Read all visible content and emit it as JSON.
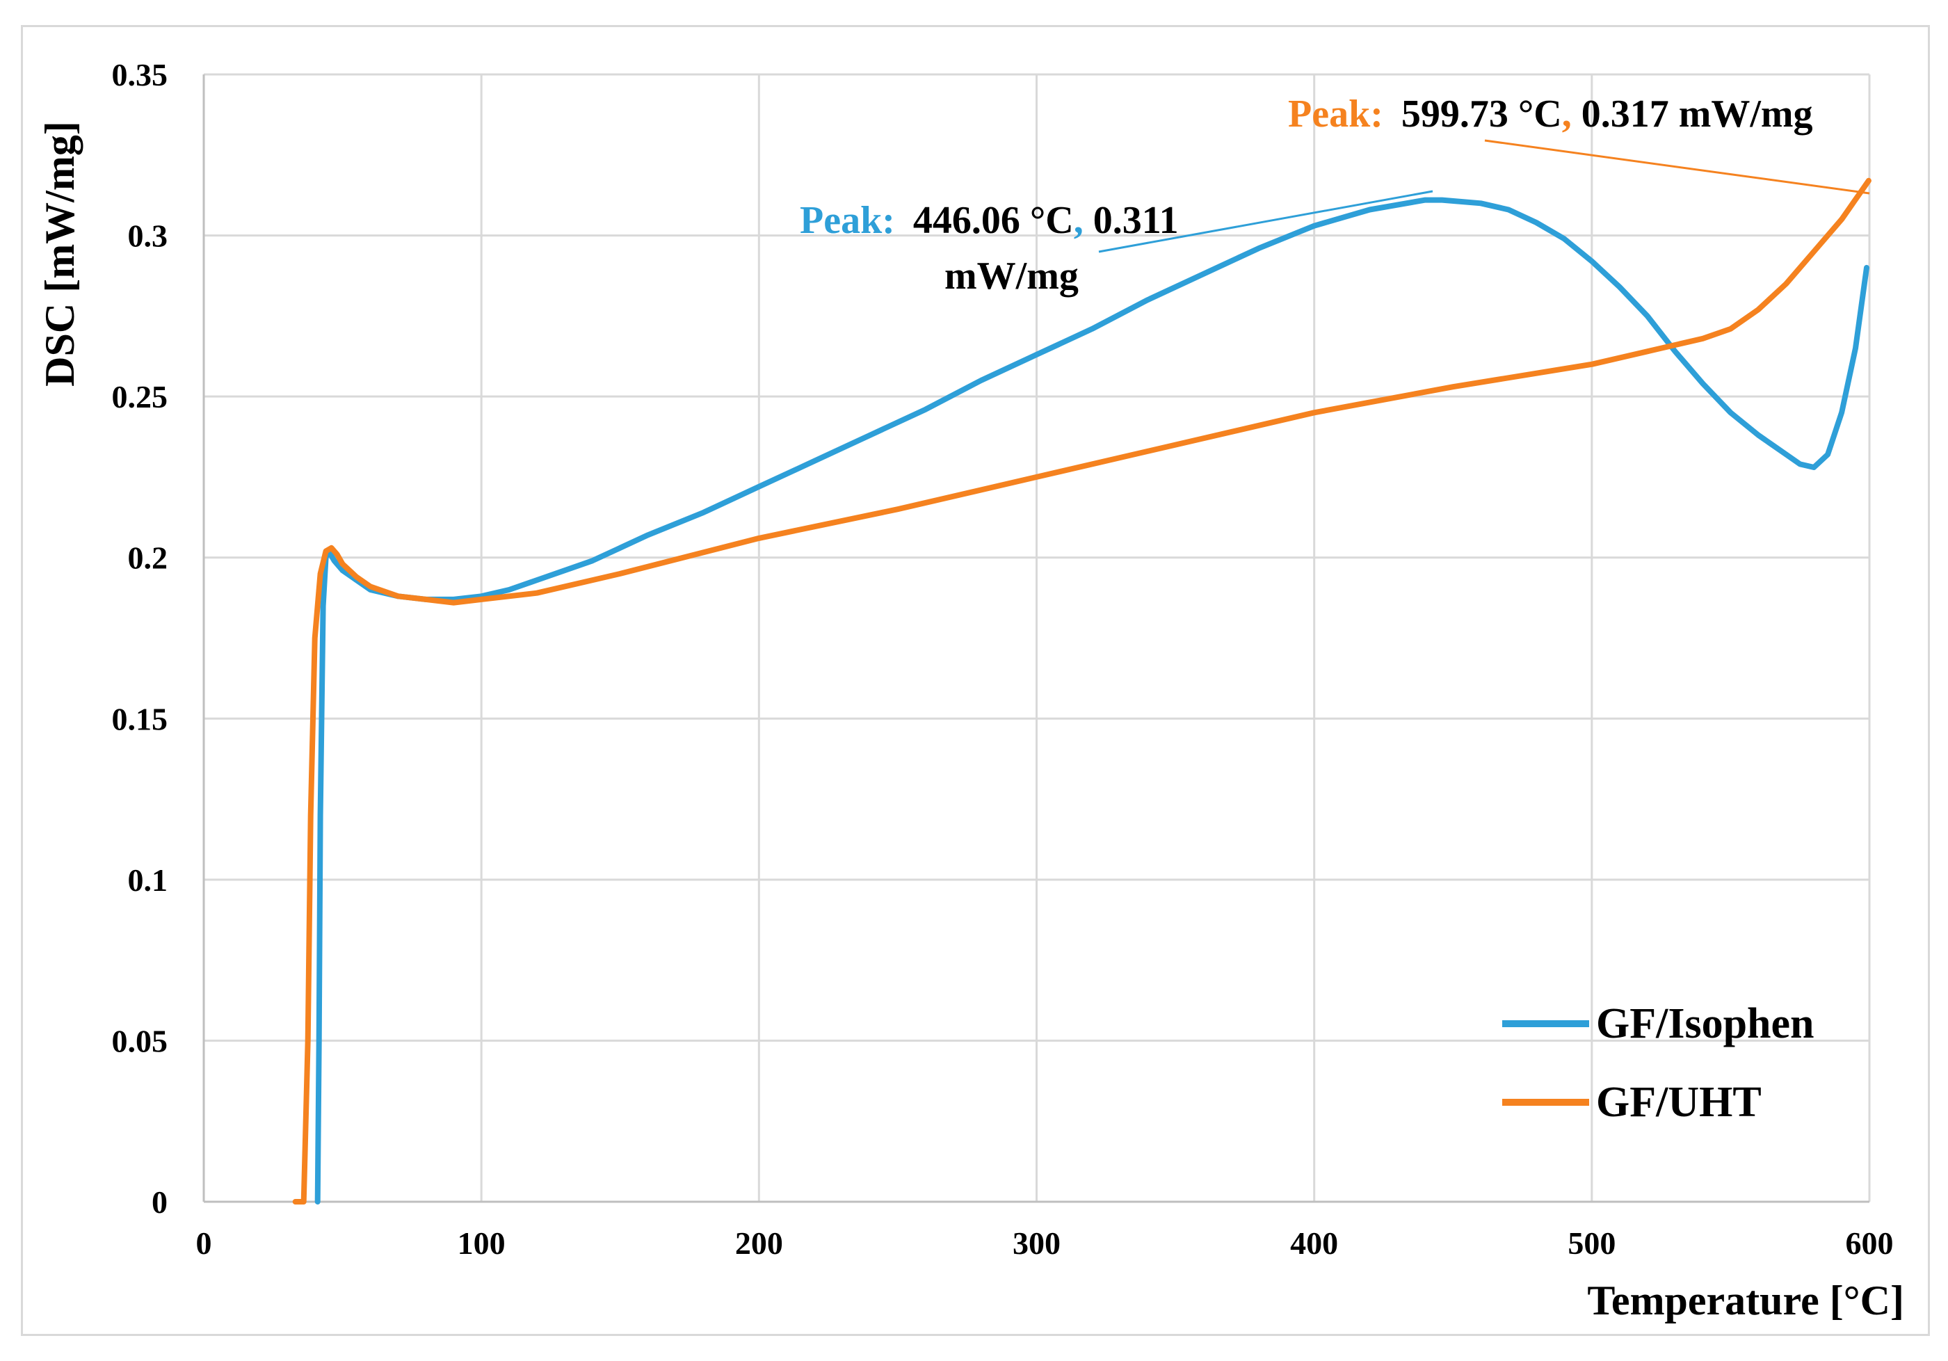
{
  "chart_data": {
    "type": "line",
    "title": "",
    "xlabel": "Temperature [°C]",
    "ylabel": "DSC [mW/mg]",
    "xlim": [
      0,
      600
    ],
    "ylim": [
      0,
      0.35
    ],
    "xticks": [
      0,
      100,
      200,
      300,
      400,
      500,
      600
    ],
    "xtick_labels": [
      "0",
      "100",
      "200",
      "300",
      "400",
      "500",
      "600"
    ],
    "yticks": [
      0,
      0.05,
      0.1,
      0.15,
      0.2,
      0.25,
      0.3,
      0.35
    ],
    "ytick_labels": [
      "0",
      "0.05",
      "0.1",
      "0.15",
      "0.2",
      "0.25",
      "0.3",
      "0.35"
    ],
    "grid": true,
    "legend_position": "bottom-right",
    "series": [
      {
        "name": "GF/Isophen",
        "color": "#2e9fd8",
        "x": [
          41,
          41.5,
          42,
          43,
          44,
          45,
          47,
          50,
          55,
          60,
          70,
          80,
          90,
          100,
          110,
          120,
          140,
          160,
          180,
          200,
          220,
          240,
          260,
          280,
          300,
          320,
          340,
          360,
          380,
          400,
          420,
          440,
          446.06,
          460,
          470,
          480,
          490,
          500,
          510,
          520,
          530,
          540,
          550,
          560,
          570,
          575,
          580,
          585,
          590,
          595,
          599
        ],
        "y": [
          0,
          0.05,
          0.12,
          0.185,
          0.2,
          0.202,
          0.199,
          0.196,
          0.193,
          0.19,
          0.188,
          0.187,
          0.187,
          0.188,
          0.19,
          0.193,
          0.199,
          0.207,
          0.214,
          0.222,
          0.23,
          0.238,
          0.246,
          0.255,
          0.263,
          0.271,
          0.28,
          0.288,
          0.296,
          0.303,
          0.308,
          0.311,
          0.311,
          0.31,
          0.308,
          0.304,
          0.299,
          0.292,
          0.284,
          0.275,
          0.264,
          0.254,
          0.245,
          0.238,
          0.232,
          0.229,
          0.228,
          0.232,
          0.245,
          0.265,
          0.29
        ]
      },
      {
        "name": "GF/UHT",
        "color": "#f5821f",
        "x": [
          33,
          36,
          37.5,
          38.5,
          40,
          42,
          44,
          46,
          48,
          50,
          55,
          60,
          70,
          80,
          90,
          100,
          120,
          150,
          200,
          250,
          300,
          350,
          400,
          450,
          500,
          520,
          540,
          550,
          560,
          570,
          580,
          590,
          599.73
        ],
        "y": [
          0,
          0,
          0.05,
          0.12,
          0.175,
          0.195,
          0.202,
          0.203,
          0.201,
          0.198,
          0.194,
          0.191,
          0.188,
          0.187,
          0.186,
          0.187,
          0.189,
          0.195,
          0.206,
          0.215,
          0.225,
          0.235,
          0.245,
          0.253,
          0.26,
          0.264,
          0.268,
          0.271,
          0.277,
          0.285,
          0.295,
          0.305,
          0.317
        ]
      }
    ],
    "annotations": [
      {
        "series": "GF/Isophen",
        "label": "Peak:",
        "line1": "446.06 °C",
        "sep": ",",
        "value": " 0.311",
        "line2": "mW/mg"
      },
      {
        "series": "GF/UHT",
        "label": "Peak:",
        "line1": "599.73 °C",
        "sep": ",",
        "value": " 0.317 mW/mg"
      }
    ]
  }
}
